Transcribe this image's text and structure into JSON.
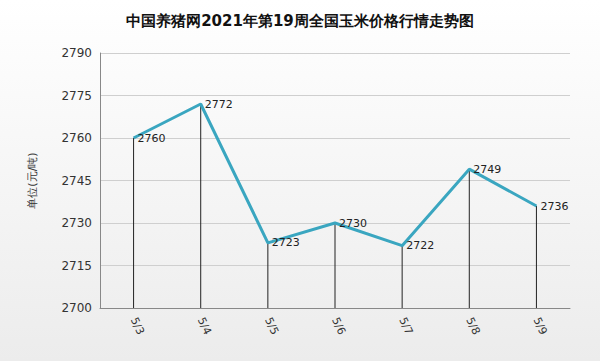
{
  "chart_data": {
    "type": "line",
    "title": "中国养猪网2021年第19周全国玉米价格行情走势图",
    "ylabel": "单位(元/吨)",
    "categories": [
      "5/3",
      "5/4",
      "5/5",
      "5/6",
      "5/7",
      "5/8",
      "5/9"
    ],
    "values": [
      2760,
      2772,
      2723,
      2730,
      2722,
      2749,
      2736
    ],
    "color": "#3aa6c0",
    "ylim": [
      2700,
      2790
    ],
    "yticks": [
      2700,
      2715,
      2730,
      2745,
      2760,
      2775,
      2790
    ],
    "grid": true,
    "data_labels": true
  }
}
